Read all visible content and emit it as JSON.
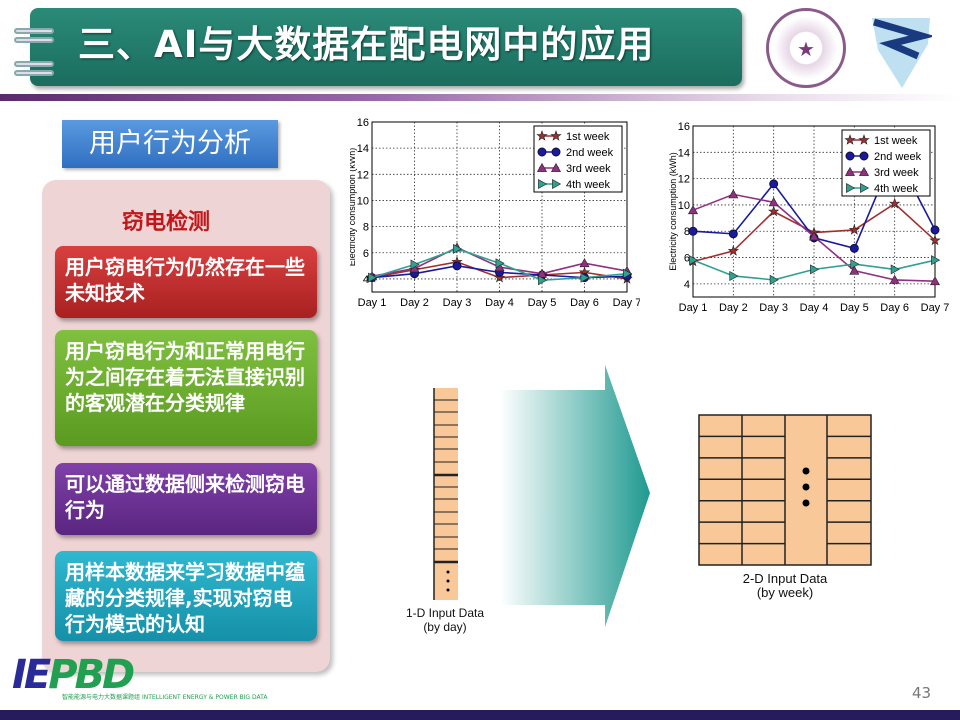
{
  "header": {
    "title": "三、AI与大数据在配电网中的应用",
    "logo_right_1": "清华大学 TSINGHUA UNIVERSITY 1911",
    "logo_right_2": "shield-logo"
  },
  "section_tab": "用户行为分析",
  "panel": {
    "heading": "窃电检测",
    "cards": [
      {
        "text": "用户窃电行为仍然存在一些未知技术",
        "color": "#c8302c"
      },
      {
        "text": "用户窃电行为和正常用电行为之间存在着无法直接识别的客观潜在分类规律",
        "color": "#6aa82a"
      },
      {
        "text": "可以通过数据侧来检测窃电行为",
        "color": "#6a3090"
      },
      {
        "text": "用样本数据来学习数据中蕴藏的分类规律,实现对窃电行为模式的认知",
        "color": "#1fa0b8"
      }
    ]
  },
  "diagram": {
    "label_1d": "1-D Input Data",
    "sub_1d": "(by day)",
    "label_2d": "2-D Input Data",
    "sub_2d": "(by week)",
    "arrow_color": "#1f9a90",
    "cell_color": "#f8c898"
  },
  "footer": {
    "page": "43",
    "logo": "IEPBD",
    "logo_cn": "智能能源与电力大数据课题组",
    "logo_en_1": "INTELLIGENT ENERGY",
    "logo_en_2": "& POWER BIG DATA"
  },
  "chart_data": [
    {
      "type": "line",
      "ylabel": "Electricity consumption (kWh)",
      "categories": [
        "Day 1",
        "Day 2",
        "Day 3",
        "Day 4",
        "Day 5",
        "Day 6",
        "Day 7"
      ],
      "ylim": [
        3,
        16
      ],
      "yticks": [
        4,
        6,
        8,
        10,
        12,
        14,
        16
      ],
      "grid": true,
      "legend": "top-right",
      "series": [
        {
          "name": "1st week",
          "color": "#a03030",
          "marker": "star",
          "values": [
            4.1,
            4.7,
            5.3,
            4.1,
            4.3,
            4.5,
            4.0
          ]
        },
        {
          "name": "2nd week",
          "color": "#1a1aa0",
          "marker": "circle",
          "values": [
            4.1,
            4.4,
            5.0,
            4.5,
            4.3,
            4.1,
            4.2
          ]
        },
        {
          "name": "3rd week",
          "color": "#903080",
          "marker": "triangle-up",
          "values": [
            4.2,
            4.8,
            6.4,
            4.9,
            4.4,
            5.2,
            4.6
          ]
        },
        {
          "name": "4th week",
          "color": "#30a090",
          "marker": "triangle-right",
          "values": [
            4.1,
            5.1,
            6.3,
            5.2,
            3.9,
            4.1,
            4.4
          ]
        }
      ]
    },
    {
      "type": "line",
      "ylabel": "Electricity consumption (kWh)",
      "categories": [
        "Day 1",
        "Day 2",
        "Day 3",
        "Day 4",
        "Day 5",
        "Day 6",
        "Day 7"
      ],
      "ylim": [
        3,
        16
      ],
      "yticks": [
        4,
        6,
        8,
        10,
        12,
        14,
        16
      ],
      "grid": true,
      "legend": "top-right",
      "series": [
        {
          "name": "1st week",
          "color": "#a03030",
          "marker": "star",
          "values": [
            5.7,
            6.5,
            9.5,
            7.9,
            8.1,
            10.1,
            7.3
          ]
        },
        {
          "name": "2nd week",
          "color": "#1a1aa0",
          "marker": "circle",
          "values": [
            8.0,
            7.8,
            11.6,
            7.5,
            6.7,
            14.0,
            8.1
          ]
        },
        {
          "name": "3rd week",
          "color": "#903080",
          "marker": "triangle-up",
          "values": [
            9.6,
            10.8,
            10.2,
            7.6,
            5.0,
            4.3,
            4.2
          ]
        },
        {
          "name": "4th week",
          "color": "#30a090",
          "marker": "triangle-right",
          "values": [
            5.8,
            4.6,
            4.3,
            5.1,
            5.5,
            5.1,
            5.8
          ]
        }
      ]
    }
  ]
}
